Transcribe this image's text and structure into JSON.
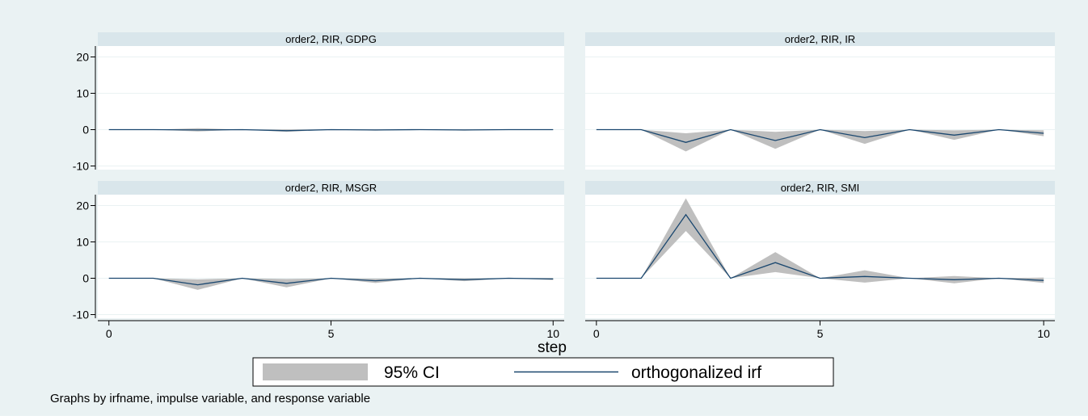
{
  "chart_data": {
    "type": "line",
    "xlabel": "step",
    "x": [
      0,
      1,
      2,
      3,
      4,
      5,
      6,
      7,
      8,
      9,
      10
    ],
    "xticks": [
      0,
      5,
      10
    ],
    "yticks": [
      -10,
      0,
      10,
      20
    ],
    "ylim": [
      -11,
      23
    ],
    "xlim": [
      -0.25,
      10.25
    ],
    "grid": true,
    "legend": {
      "position": "bottom",
      "entries": [
        "95% CI",
        "orthogonalized irf"
      ]
    },
    "note": "Graphs by irfname, impulse variable, and response variable",
    "colors": {
      "band": "#bfbfbf",
      "line": "#1a476f",
      "panel_bg": "#ffffff",
      "outer_bg": "#eaf2f3",
      "strip": "#d9e6eb",
      "grid": "#eaf2f3"
    },
    "panels": [
      {
        "title": "order2, RIR, GDPG",
        "irf": [
          0,
          0,
          -0.1,
          0,
          -0.3,
          0,
          -0.1,
          0,
          -0.1,
          0,
          0
        ],
        "lower": [
          0,
          0,
          -0.5,
          0,
          -0.6,
          0,
          -0.3,
          0,
          -0.3,
          0,
          -0.1
        ],
        "upper": [
          0,
          0,
          0.4,
          0,
          0.1,
          0,
          0.1,
          0,
          0.1,
          0,
          0.1
        ]
      },
      {
        "title": "order2, RIR, IR",
        "irf": [
          0,
          0,
          -3.5,
          0,
          -3.0,
          0,
          -2.2,
          0,
          -1.5,
          0,
          -1.0
        ],
        "lower": [
          0,
          0,
          -6.0,
          0,
          -5.3,
          0,
          -3.9,
          0,
          -2.8,
          0,
          -1.8
        ],
        "upper": [
          0,
          0,
          -1.0,
          0,
          -0.6,
          0,
          -0.4,
          0,
          -0.2,
          0,
          -0.2
        ]
      },
      {
        "title": "order2, RIR, MSGR",
        "irf": [
          0,
          0,
          -1.8,
          0,
          -1.4,
          0,
          -0.7,
          0,
          -0.4,
          0,
          -0.2
        ],
        "lower": [
          0,
          0,
          -3.2,
          0,
          -2.5,
          0,
          -1.3,
          0,
          -0.8,
          0,
          -0.5
        ],
        "upper": [
          0,
          0,
          -0.3,
          0,
          -0.2,
          0,
          -0.1,
          0,
          0,
          0,
          0.1
        ]
      },
      {
        "title": "order2, RIR, SMI",
        "irf": [
          0,
          0,
          17.5,
          0,
          4.3,
          0,
          0.5,
          0,
          -0.4,
          0,
          -0.6
        ],
        "lower": [
          0,
          0,
          13.0,
          0,
          1.7,
          0,
          -1.2,
          0,
          -1.4,
          0,
          -1.3
        ],
        "upper": [
          0,
          0,
          22.0,
          0,
          7.2,
          0,
          2.2,
          0,
          0.6,
          0,
          0.2
        ]
      }
    ]
  }
}
